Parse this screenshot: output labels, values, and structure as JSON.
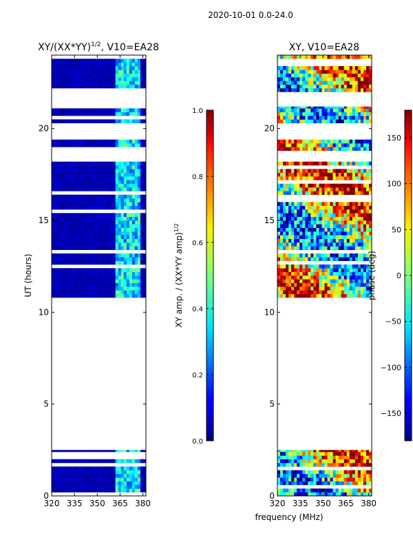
{
  "figure": {
    "suptitle": "2020-10-01 0.0-24.0",
    "xlabel": "frequency (MHz)"
  },
  "chart_data": [
    {
      "type": "heatmap",
      "title": "XY/(XX*YY)",
      "title_exponent": "1/2",
      "title_suffix": ", V10=EA28",
      "xlabel": "",
      "ylabel": "UT (hours)",
      "xlim": [
        320,
        382
      ],
      "ylim": [
        0,
        24
      ],
      "xticks": [
        320,
        335,
        350,
        365,
        380
      ],
      "yticks": [
        0,
        5,
        10,
        15,
        20
      ],
      "colormap": "jet",
      "colorbar": {
        "label": "XY amp. / (XX*YY amp)",
        "label_exponent": "1/2",
        "range": [
          0.0,
          1.0
        ],
        "ticks": [
          "0.0",
          "0.2",
          "0.4",
          "0.6",
          "0.8",
          "1.0"
        ]
      },
      "data_blocks_hours": [
        [
          0.0,
          2.5
        ],
        [
          10.8,
          18.2
        ],
        [
          18.8,
          19.4
        ],
        [
          20.3,
          21.2
        ],
        [
          22.0,
          24.0
        ]
      ],
      "typical_value": 0.05,
      "high_value_band_mhz": [
        362,
        378
      ],
      "high_value_range": [
        0.2,
        0.5
      ]
    },
    {
      "type": "heatmap",
      "title": "XY, V10=EA28",
      "xlabel": "",
      "ylabel": "",
      "xlim": [
        320,
        382
      ],
      "ylim": [
        0,
        24
      ],
      "xticks": [
        320,
        335,
        350,
        365,
        380
      ],
      "yticks": [
        0,
        5,
        10,
        15,
        20
      ],
      "colormap": "jet",
      "colorbar": {
        "label": "phase (deg)",
        "range": [
          -180,
          180
        ],
        "ticks": [
          "−150",
          "−100",
          "−50",
          "0",
          "50",
          "100",
          "150"
        ]
      },
      "data_blocks_hours": [
        [
          0.0,
          2.5
        ],
        [
          10.8,
          18.2
        ],
        [
          18.8,
          19.4
        ],
        [
          20.3,
          21.2
        ],
        [
          22.0,
          24.0
        ]
      ],
      "value_range": [
        -180,
        180
      ]
    }
  ]
}
